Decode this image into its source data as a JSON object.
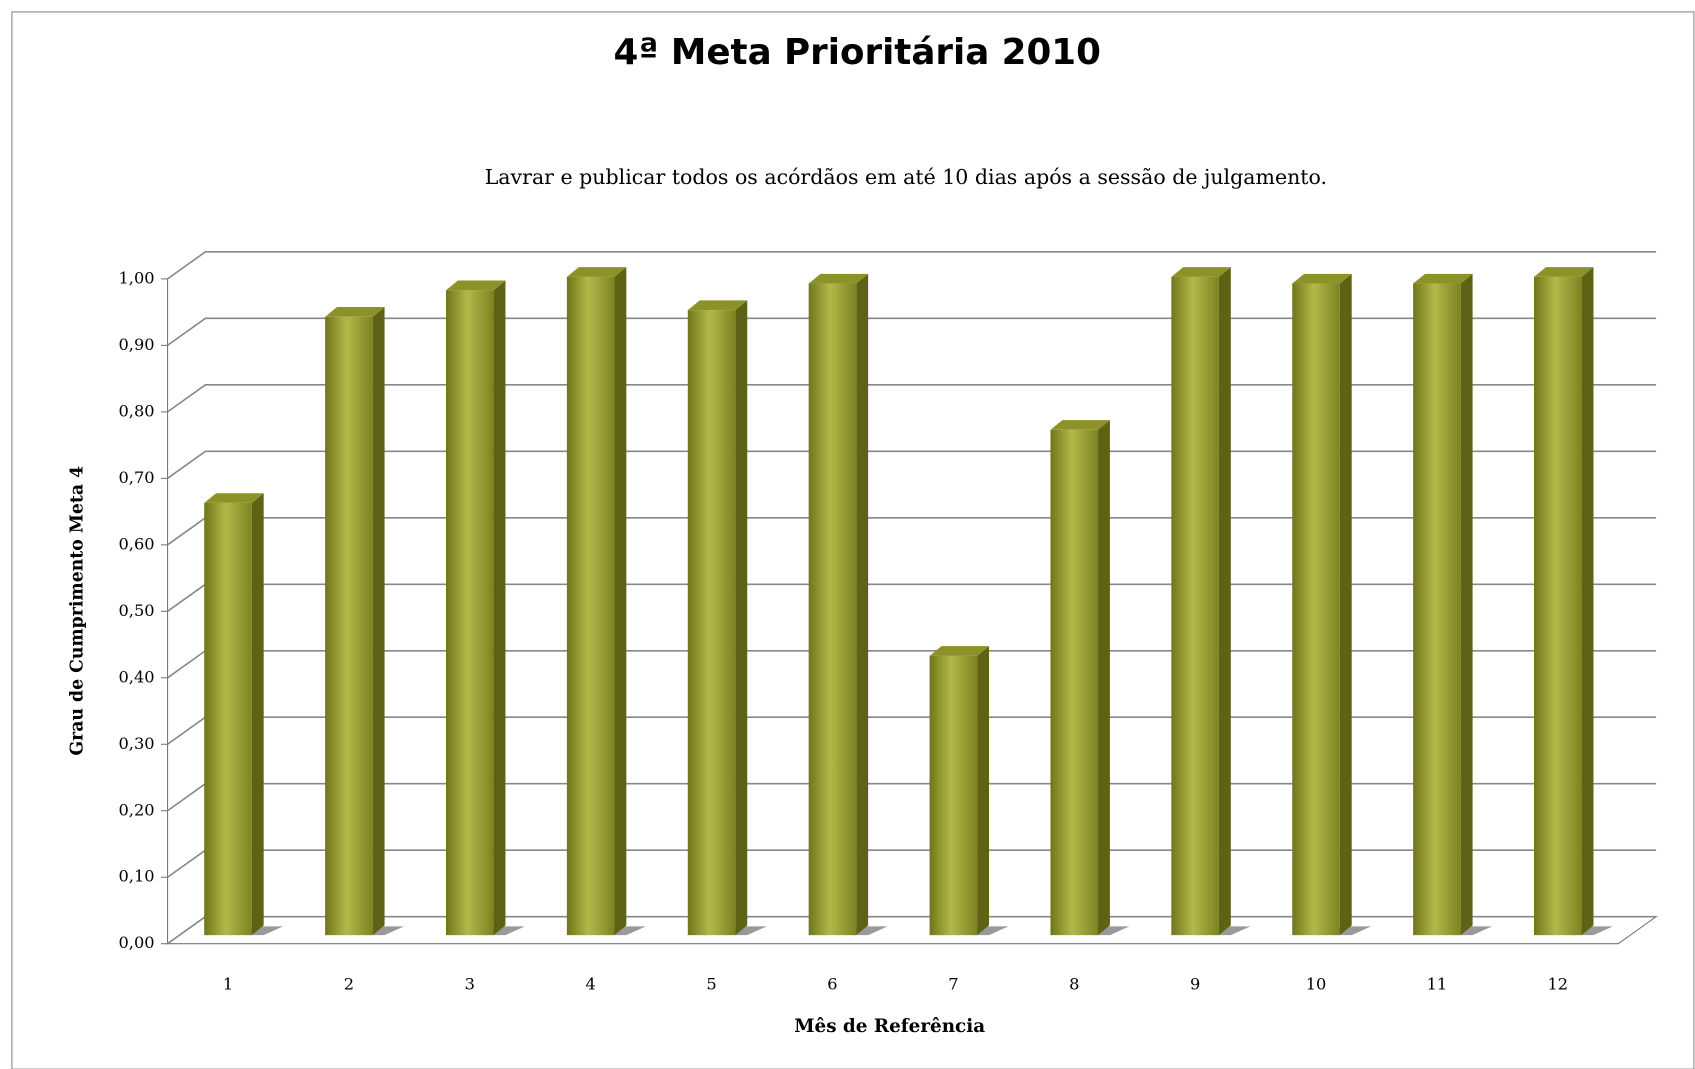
{
  "chart_data": {
    "type": "bar3d",
    "title": "4ª Meta Prioritária 2010",
    "subtitle": "Lavrar e publicar todos os acórdãos em até 10 dias após a sessão de julgamento.",
    "x_label": "Mês de Referência",
    "y_label": "Grau de Cumprimento  Meta 4",
    "categories": [
      "1",
      "2",
      "3",
      "4",
      "5",
      "6",
      "7",
      "8",
      "9",
      "10",
      "11",
      "12"
    ],
    "values": [
      0.65,
      0.93,
      0.97,
      0.99,
      0.94,
      0.98,
      0.42,
      0.76,
      0.99,
      0.98,
      0.98,
      0.99
    ],
    "color": "#9ea338",
    "ylim": [
      0,
      1
    ],
    "yticks": [
      {
        "value": 0,
        "label": "0,00"
      },
      {
        "value": 0.1,
        "label": "0,10"
      },
      {
        "value": 0.2,
        "label": "0,20"
      },
      {
        "value": 0.3,
        "label": "0,30"
      },
      {
        "value": 0.4,
        "label": "0,40"
      },
      {
        "value": 0.5,
        "label": "0,50"
      },
      {
        "value": 0.6,
        "label": "0,60"
      },
      {
        "value": 0.7,
        "label": "0,70"
      },
      {
        "value": 0.8,
        "label": "0,80"
      },
      {
        "value": 0.9,
        "label": "0,90"
      },
      {
        "value": 1,
        "label": "1,00"
      }
    ],
    "grid": true
  }
}
